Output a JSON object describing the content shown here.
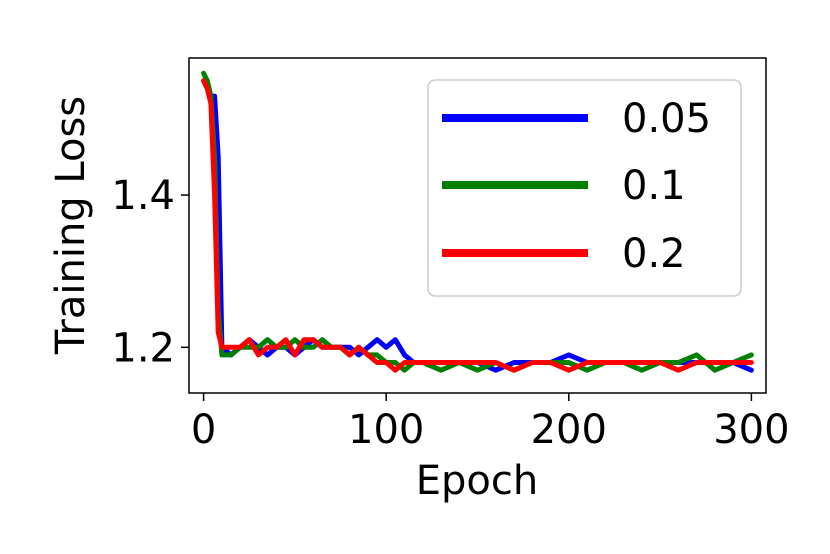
{
  "chart_data": {
    "type": "line",
    "title": "",
    "xlabel": "Epoch",
    "ylabel": "Training Loss",
    "xlim": [
      -8,
      308
    ],
    "ylim": [
      1.14,
      1.58
    ],
    "xticks": [
      0,
      100,
      200,
      300
    ],
    "xtick_labels": [
      "0",
      "100",
      "200",
      "300"
    ],
    "yticks": [
      1.2,
      1.4
    ],
    "ytick_labels": [
      "1.2",
      "1.4"
    ],
    "grid": false,
    "legend_position": "upper right",
    "series": [
      {
        "name": "0.05",
        "color": "#0000ff",
        "x": [
          0,
          2,
          4,
          6,
          8,
          10,
          15,
          20,
          25,
          30,
          35,
          40,
          45,
          50,
          55,
          60,
          65,
          70,
          75,
          80,
          85,
          90,
          95,
          100,
          105,
          110,
          115,
          120,
          130,
          140,
          150,
          160,
          170,
          180,
          190,
          200,
          210,
          220,
          230,
          240,
          250,
          260,
          270,
          280,
          290,
          300
        ],
        "y": [
          1.55,
          1.54,
          1.53,
          1.53,
          1.45,
          1.2,
          1.19,
          1.2,
          1.21,
          1.2,
          1.19,
          1.2,
          1.2,
          1.19,
          1.2,
          1.21,
          1.2,
          1.2,
          1.2,
          1.2,
          1.19,
          1.2,
          1.21,
          1.2,
          1.21,
          1.19,
          1.18,
          1.18,
          1.18,
          1.18,
          1.18,
          1.17,
          1.18,
          1.18,
          1.18,
          1.19,
          1.18,
          1.18,
          1.18,
          1.18,
          1.18,
          1.18,
          1.18,
          1.18,
          1.18,
          1.17
        ]
      },
      {
        "name": "0.1",
        "color": "#008000",
        "x": [
          0,
          2,
          4,
          6,
          8,
          10,
          15,
          20,
          25,
          30,
          35,
          40,
          45,
          50,
          55,
          60,
          65,
          70,
          75,
          80,
          85,
          90,
          95,
          100,
          105,
          110,
          115,
          120,
          130,
          140,
          150,
          160,
          170,
          180,
          190,
          200,
          210,
          220,
          230,
          240,
          250,
          260,
          270,
          280,
          290,
          300
        ],
        "y": [
          1.56,
          1.55,
          1.53,
          1.45,
          1.25,
          1.19,
          1.19,
          1.2,
          1.2,
          1.2,
          1.21,
          1.2,
          1.2,
          1.21,
          1.2,
          1.2,
          1.21,
          1.2,
          1.2,
          1.19,
          1.2,
          1.19,
          1.19,
          1.18,
          1.18,
          1.17,
          1.18,
          1.18,
          1.17,
          1.18,
          1.17,
          1.18,
          1.17,
          1.18,
          1.18,
          1.18,
          1.17,
          1.18,
          1.18,
          1.17,
          1.18,
          1.18,
          1.19,
          1.17,
          1.18,
          1.19
        ]
      },
      {
        "name": "0.2",
        "color": "#ff0000",
        "x": [
          0,
          2,
          4,
          6,
          8,
          10,
          15,
          20,
          25,
          30,
          35,
          40,
          45,
          50,
          55,
          60,
          65,
          70,
          75,
          80,
          85,
          90,
          95,
          100,
          105,
          110,
          115,
          120,
          130,
          140,
          150,
          160,
          170,
          180,
          190,
          200,
          210,
          220,
          230,
          240,
          250,
          260,
          270,
          280,
          290,
          300
        ],
        "y": [
          1.55,
          1.54,
          1.52,
          1.4,
          1.22,
          1.2,
          1.2,
          1.2,
          1.21,
          1.19,
          1.2,
          1.2,
          1.21,
          1.19,
          1.21,
          1.21,
          1.2,
          1.2,
          1.2,
          1.19,
          1.2,
          1.19,
          1.18,
          1.18,
          1.17,
          1.18,
          1.18,
          1.18,
          1.18,
          1.18,
          1.18,
          1.18,
          1.17,
          1.18,
          1.18,
          1.17,
          1.18,
          1.18,
          1.18,
          1.18,
          1.18,
          1.17,
          1.18,
          1.18,
          1.18,
          1.18
        ]
      }
    ]
  }
}
